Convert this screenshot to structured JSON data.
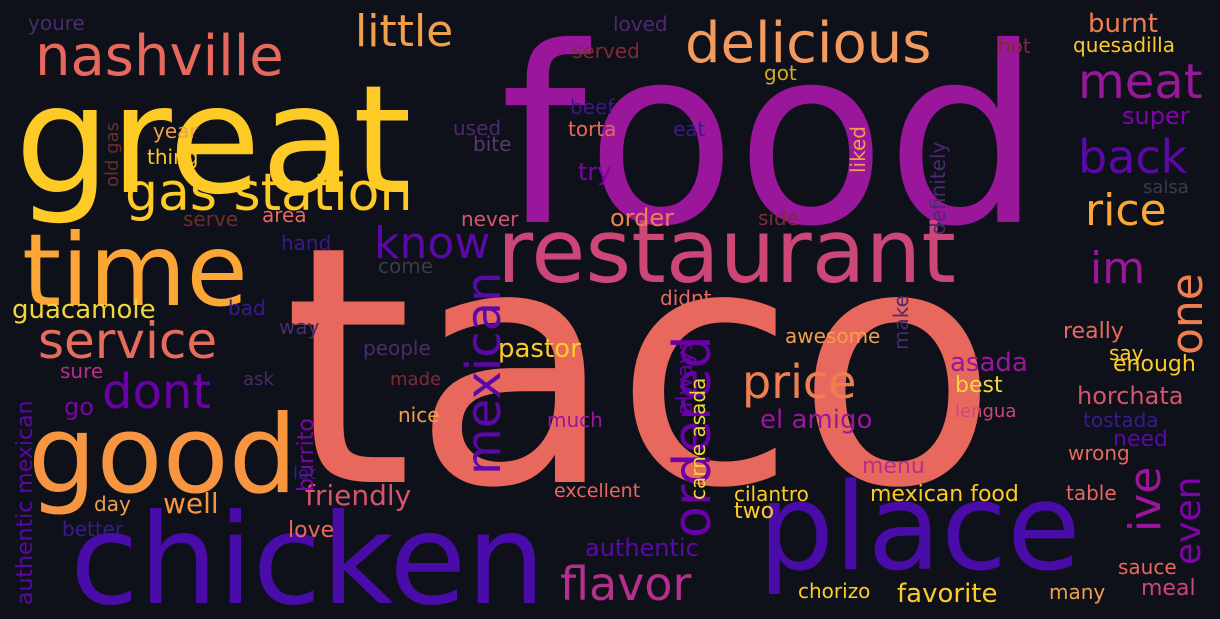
{
  "words": [
    {
      "text": "taco",
      "color": "#e8685e"
    },
    {
      "text": "food",
      "color": "#9a179b"
    },
    {
      "text": "great",
      "color": "#fdca26"
    },
    {
      "text": "chicken",
      "color": "#4a0ca8"
    },
    {
      "text": "place",
      "color": "#4a0ca8"
    },
    {
      "text": "restaurant",
      "color": "#cc4778"
    },
    {
      "text": "good",
      "color": "#f89540"
    },
    {
      "text": "time",
      "color": "#fca636"
    },
    {
      "text": "nashville",
      "color": "#e8685e"
    },
    {
      "text": "delicious",
      "color": "#f39a5e"
    },
    {
      "text": "gas station",
      "color": "#fdca26"
    },
    {
      "text": "service",
      "color": "#e66c5c"
    },
    {
      "text": "little",
      "color": "#f0a04a"
    },
    {
      "text": "meat",
      "color": "#9a179b"
    },
    {
      "text": "back",
      "color": "#5b08a8"
    },
    {
      "text": "rice",
      "color": "#fca636"
    },
    {
      "text": "im",
      "color": "#9a179b"
    },
    {
      "text": "know",
      "color": "#5b08a8"
    },
    {
      "text": "price",
      "color": "#f07f4f"
    },
    {
      "text": "dont",
      "color": "#6a00a8"
    },
    {
      "text": "ordered",
      "color": "#6a00a8"
    },
    {
      "text": "mexican",
      "color": "#5b08a8"
    },
    {
      "text": "flavor",
      "color": "#b52f8c"
    },
    {
      "text": "one",
      "color": "#f07f4f"
    },
    {
      "text": "ive",
      "color": "#9a179b"
    },
    {
      "text": "even",
      "color": "#7e03a8"
    },
    {
      "text": "guacamole",
      "color": "#f0d73a"
    },
    {
      "text": "pastor",
      "color": "#fdca26"
    },
    {
      "text": "friendly",
      "color": "#d5546e"
    },
    {
      "text": "well",
      "color": "#f89540"
    },
    {
      "text": "burnt",
      "color": "#f07f4f"
    },
    {
      "text": "quesadilla",
      "color": "#fdca26"
    },
    {
      "text": "super",
      "color": "#7e03a8"
    },
    {
      "text": "hot",
      "color": "#7e2a3a"
    },
    {
      "text": "served",
      "color": "#7e2a3a"
    },
    {
      "text": "loved",
      "color": "#4b2a6e"
    },
    {
      "text": "youre",
      "color": "#4b2a6e"
    },
    {
      "text": "got",
      "color": "#d6a92a"
    },
    {
      "text": "beef",
      "color": "#3a1a8a"
    },
    {
      "text": "torta",
      "color": "#e8685e"
    },
    {
      "text": "eat",
      "color": "#3a1a8a"
    },
    {
      "text": "used",
      "color": "#4b2a6e"
    },
    {
      "text": "bite",
      "color": "#5a3a6e"
    },
    {
      "text": "year",
      "color": "#f0a04a"
    },
    {
      "text": "thing",
      "color": "#fdca26"
    },
    {
      "text": "old gas",
      "color": "#6a2e2e"
    },
    {
      "text": "try",
      "color": "#7e03a8"
    },
    {
      "text": "liked",
      "color": "#f0a04a"
    },
    {
      "text": "definitely",
      "color": "#4b2a6e"
    },
    {
      "text": "salsa",
      "color": "#3a3a4e"
    },
    {
      "text": "serve",
      "color": "#6a2e2e"
    },
    {
      "text": "area",
      "color": "#e8685e"
    },
    {
      "text": "never",
      "color": "#d5546e"
    },
    {
      "text": "order",
      "color": "#f07f4f"
    },
    {
      "text": "side",
      "color": "#7e2a3a"
    },
    {
      "text": "hand",
      "color": "#3a1a8a"
    },
    {
      "text": "come",
      "color": "#3a3a4e"
    },
    {
      "text": "bad",
      "color": "#3a1a8a"
    },
    {
      "text": "way",
      "color": "#4b2a6e"
    },
    {
      "text": "didnt",
      "color": "#e8685e"
    },
    {
      "text": "really",
      "color": "#e8685e"
    },
    {
      "text": "say",
      "color": "#fdca26"
    },
    {
      "text": "awesome",
      "color": "#f0a04a"
    },
    {
      "text": "make",
      "color": "#4b2a6e"
    },
    {
      "text": "always",
      "color": "#6a00a8"
    },
    {
      "text": "people",
      "color": "#4b2a6e"
    },
    {
      "text": "authentic mexican",
      "color": "#5b08a8"
    },
    {
      "text": "burrito",
      "color": "#7e03a8"
    },
    {
      "text": "asada",
      "color": "#9a179b"
    },
    {
      "text": "enough",
      "color": "#fdca26"
    },
    {
      "text": "best",
      "color": "#f0d73a"
    },
    {
      "text": "horchata",
      "color": "#d5546e"
    },
    {
      "text": "sure",
      "color": "#b52f8c"
    },
    {
      "text": "ask",
      "color": "#4b2a6e"
    },
    {
      "text": "made",
      "color": "#7e2a3a"
    },
    {
      "text": "go",
      "color": "#7e03a8"
    },
    {
      "text": "nice",
      "color": "#f0a04a"
    },
    {
      "text": "much",
      "color": "#9a179b"
    },
    {
      "text": "el amigo",
      "color": "#9a179b"
    },
    {
      "text": "lengua",
      "color": "#cc4778"
    },
    {
      "text": "tostada",
      "color": "#3a1a8a"
    },
    {
      "text": "need",
      "color": "#5b08a8"
    },
    {
      "text": "carne asada",
      "color": "#f0d73a"
    },
    {
      "text": "lot",
      "color": "#3a1a8a"
    },
    {
      "text": "wrong",
      "color": "#e8685e"
    },
    {
      "text": "menu",
      "color": "#b52f8c"
    },
    {
      "text": "excellent",
      "color": "#e8685e"
    },
    {
      "text": "cilantro",
      "color": "#fdca26"
    },
    {
      "text": "mexican food",
      "color": "#fdca26"
    },
    {
      "text": "table",
      "color": "#e8685e"
    },
    {
      "text": "day",
      "color": "#f0a04a"
    },
    {
      "text": "better",
      "color": "#3a1a8a"
    },
    {
      "text": "love",
      "color": "#e8685e"
    },
    {
      "text": "authentic",
      "color": "#5b08a8"
    },
    {
      "text": "two",
      "color": "#fdca26"
    },
    {
      "text": "chorizo",
      "color": "#fdca26"
    },
    {
      "text": "favorite",
      "color": "#fdca26"
    },
    {
      "text": "many",
      "color": "#f0a04a"
    },
    {
      "text": "sauce",
      "color": "#e8685e"
    },
    {
      "text": "meal",
      "color": "#cc4778"
    }
  ]
}
